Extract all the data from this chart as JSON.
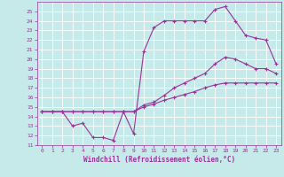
{
  "xlabel": "Windchill (Refroidissement éolien,°C)",
  "background_color": "#c6e9e9",
  "grid_color": "#ffffff",
  "line_color": "#993399",
  "xlim": [
    -0.5,
    23.5
  ],
  "ylim": [
    11,
    26
  ],
  "xticks": [
    0,
    1,
    2,
    3,
    4,
    5,
    6,
    7,
    8,
    9,
    10,
    11,
    12,
    13,
    14,
    15,
    16,
    17,
    18,
    19,
    20,
    21,
    22,
    23
  ],
  "yticks": [
    11,
    12,
    13,
    14,
    15,
    16,
    17,
    18,
    19,
    20,
    21,
    22,
    23,
    24,
    25
  ],
  "line1_x": [
    0,
    1,
    2,
    3,
    4,
    5,
    6,
    7,
    8,
    9,
    10,
    11,
    12,
    13,
    14,
    15,
    16,
    17,
    18,
    19,
    20,
    21,
    22,
    23
  ],
  "line1_y": [
    14.5,
    14.5,
    14.5,
    14.5,
    14.5,
    14.5,
    14.5,
    14.5,
    14.5,
    14.5,
    15.0,
    15.3,
    15.7,
    16.0,
    16.3,
    16.6,
    17.0,
    17.3,
    17.5,
    17.5,
    17.5,
    17.5,
    17.5,
    17.5
  ],
  "line2_x": [
    0,
    1,
    2,
    3,
    4,
    5,
    6,
    7,
    8,
    9,
    10,
    11,
    12,
    13,
    14,
    15,
    16,
    17,
    18,
    19,
    20,
    21,
    22,
    23
  ],
  "line2_y": [
    14.5,
    14.5,
    14.5,
    14.5,
    14.5,
    14.5,
    14.5,
    14.5,
    14.5,
    14.5,
    15.2,
    15.5,
    16.2,
    17.0,
    17.5,
    18.0,
    18.5,
    19.5,
    20.2,
    20.0,
    19.5,
    19.0,
    19.0,
    18.5
  ],
  "line3_x": [
    0,
    1,
    2,
    3,
    4,
    5,
    6,
    7,
    8,
    9,
    10,
    11,
    12,
    13,
    14,
    15,
    16,
    17,
    18,
    19,
    20,
    21,
    22,
    23
  ],
  "line3_y": [
    14.5,
    14.5,
    14.5,
    13.0,
    13.3,
    11.8,
    11.8,
    11.5,
    14.5,
    12.2,
    20.8,
    23.3,
    24.0,
    24.0,
    24.0,
    24.0,
    24.0,
    25.2,
    25.5,
    24.0,
    22.5,
    22.2,
    22.0,
    19.5
  ]
}
